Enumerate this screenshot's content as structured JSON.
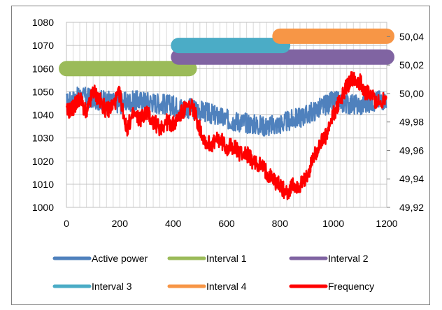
{
  "chart_data": {
    "type": "line",
    "title": "",
    "xlabel": "",
    "ylabel": "",
    "y2label": "",
    "xlim": [
      0,
      1200
    ],
    "ylim": [
      1000,
      1080
    ],
    "y2lim": [
      49.92,
      50.05
    ],
    "x_ticks": [
      "0",
      "200",
      "400",
      "600",
      "800",
      "1000",
      "1200"
    ],
    "y_ticks": [
      "1000",
      "1010",
      "1020",
      "1030",
      "1040",
      "1050",
      "1060",
      "1070",
      "1080"
    ],
    "y2_ticks": [
      "49,92",
      "49,94",
      "49,96",
      "49,98",
      "50,00",
      "50,02",
      "50,04"
    ],
    "grid": true,
    "legend_position": "bottom",
    "series": [
      {
        "name": "Active power",
        "axis": "left",
        "color": "#4f81bd",
        "x": [
          0,
          50,
          100,
          150,
          200,
          250,
          300,
          350,
          400,
          450,
          500,
          550,
          600,
          650,
          700,
          750,
          800,
          850,
          900,
          950,
          1000,
          1050,
          1100,
          1150,
          1200
        ],
        "values": [
          1045,
          1048,
          1047,
          1046,
          1045,
          1046,
          1046,
          1045,
          1044,
          1043,
          1042,
          1040,
          1038,
          1037,
          1036,
          1035,
          1036,
          1038,
          1040,
          1043,
          1046,
          1045,
          1044,
          1046,
          1047
        ]
      },
      {
        "name": "Interval 1",
        "axis": "left",
        "color": "#9bbb59",
        "x": [
          0,
          460
        ],
        "values": [
          1060,
          1060
        ]
      },
      {
        "name": "Interval 2",
        "axis": "left",
        "color": "#8064a2",
        "x": [
          420,
          1200
        ],
        "values": [
          1065,
          1065
        ]
      },
      {
        "name": "Interval 3",
        "axis": "left",
        "color": "#4bacc6",
        "x": [
          420,
          810
        ],
        "values": [
          1070,
          1070
        ]
      },
      {
        "name": "Interval 4",
        "axis": "left",
        "color": "#f79646",
        "x": [
          800,
          1200
        ],
        "values": [
          1074,
          1074
        ]
      },
      {
        "name": "Frequency",
        "axis": "right",
        "color": "#ff0000",
        "x": [
          0,
          25,
          50,
          75,
          100,
          125,
          150,
          175,
          200,
          225,
          250,
          275,
          300,
          325,
          350,
          375,
          400,
          425,
          450,
          475,
          500,
          525,
          550,
          575,
          600,
          625,
          650,
          675,
          700,
          725,
          750,
          775,
          800,
          825,
          850,
          875,
          900,
          925,
          950,
          975,
          1000,
          1025,
          1050,
          1075,
          1100,
          1125,
          1150,
          1175,
          1200
        ],
        "values": [
          49.987,
          49.99,
          49.997,
          49.985,
          50.002,
          49.995,
          49.988,
          49.992,
          50.0,
          49.975,
          49.985,
          49.982,
          49.987,
          49.98,
          49.976,
          49.98,
          49.978,
          49.985,
          49.99,
          49.99,
          49.975,
          49.965,
          49.965,
          49.968,
          49.962,
          49.963,
          49.958,
          49.958,
          49.952,
          49.95,
          49.945,
          49.94,
          49.935,
          49.93,
          49.935,
          49.935,
          49.94,
          49.955,
          49.965,
          49.97,
          49.985,
          49.995,
          50.005,
          50.012,
          50.008,
          50.0,
          49.997,
          49.992,
          50.0
        ]
      }
    ]
  }
}
